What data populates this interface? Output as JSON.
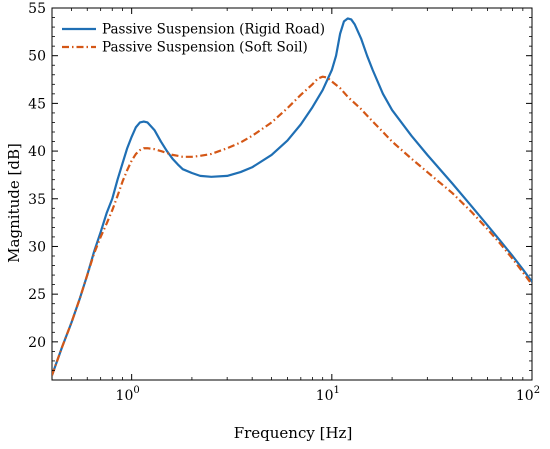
{
  "chart_data": {
    "type": "line",
    "title": "",
    "xlabel": "Frequency [Hz]",
    "ylabel": "Magnitude [dB]",
    "x_scale": "log",
    "xlim": [
      0.4,
      100
    ],
    "ylim": [
      16,
      55
    ],
    "x_ticks": [
      1,
      10,
      100
    ],
    "x_tick_labels": [
      "10^0",
      "10^1",
      "10^2"
    ],
    "y_ticks": [
      20,
      25,
      30,
      35,
      40,
      45,
      50,
      55
    ],
    "grid": false,
    "legend_position": "top-left",
    "series": [
      {
        "name": "Passive Suspension (Rigid Road)",
        "color": "#1f6fb4",
        "style": "solid",
        "points": [
          [
            0.4,
            16.5
          ],
          [
            0.45,
            19.5
          ],
          [
            0.5,
            22.0
          ],
          [
            0.55,
            24.5
          ],
          [
            0.6,
            27.0
          ],
          [
            0.65,
            29.5
          ],
          [
            0.7,
            31.5
          ],
          [
            0.75,
            33.5
          ],
          [
            0.8,
            35.0
          ],
          [
            0.85,
            37.0
          ],
          [
            0.9,
            38.7
          ],
          [
            0.95,
            40.3
          ],
          [
            1.0,
            41.5
          ],
          [
            1.05,
            42.5
          ],
          [
            1.1,
            43.0
          ],
          [
            1.15,
            43.1
          ],
          [
            1.2,
            43.0
          ],
          [
            1.3,
            42.2
          ],
          [
            1.4,
            41.0
          ],
          [
            1.5,
            40.0
          ],
          [
            1.6,
            39.2
          ],
          [
            1.7,
            38.6
          ],
          [
            1.8,
            38.1
          ],
          [
            2.0,
            37.7
          ],
          [
            2.2,
            37.4
          ],
          [
            2.5,
            37.3
          ],
          [
            3.0,
            37.4
          ],
          [
            3.5,
            37.8
          ],
          [
            4.0,
            38.3
          ],
          [
            5.0,
            39.6
          ],
          [
            6.0,
            41.1
          ],
          [
            7.0,
            42.8
          ],
          [
            8.0,
            44.6
          ],
          [
            9.0,
            46.4
          ],
          [
            10.0,
            48.5
          ],
          [
            10.5,
            50.0
          ],
          [
            11.0,
            52.3
          ],
          [
            11.5,
            53.6
          ],
          [
            12.0,
            53.9
          ],
          [
            12.5,
            53.8
          ],
          [
            13.0,
            53.3
          ],
          [
            14.0,
            51.8
          ],
          [
            15.0,
            50.0
          ],
          [
            16.0,
            48.5
          ],
          [
            18.0,
            46.0
          ],
          [
            20.0,
            44.3
          ],
          [
            25.0,
            41.6
          ],
          [
            30.0,
            39.6
          ],
          [
            40.0,
            36.6
          ],
          [
            50.0,
            34.2
          ],
          [
            60.0,
            32.2
          ],
          [
            70.0,
            30.5
          ],
          [
            80.0,
            29.0
          ],
          [
            90.0,
            27.6
          ],
          [
            100.0,
            26.3
          ]
        ]
      },
      {
        "name": "Passive Suspension (Soft Soil)",
        "color": "#d45716",
        "style": "dashdot",
        "points": [
          [
            0.4,
            16.5
          ],
          [
            0.45,
            19.5
          ],
          [
            0.5,
            22.0
          ],
          [
            0.55,
            24.5
          ],
          [
            0.6,
            27.0
          ],
          [
            0.65,
            29.3
          ],
          [
            0.7,
            31.0
          ],
          [
            0.75,
            32.4
          ],
          [
            0.8,
            33.8
          ],
          [
            0.85,
            35.3
          ],
          [
            0.9,
            36.8
          ],
          [
            0.95,
            38.0
          ],
          [
            1.0,
            39.0
          ],
          [
            1.05,
            39.7
          ],
          [
            1.1,
            40.1
          ],
          [
            1.15,
            40.3
          ],
          [
            1.2,
            40.3
          ],
          [
            1.3,
            40.2
          ],
          [
            1.4,
            40.0
          ],
          [
            1.5,
            39.8
          ],
          [
            1.6,
            39.6
          ],
          [
            1.7,
            39.5
          ],
          [
            1.8,
            39.4
          ],
          [
            2.0,
            39.4
          ],
          [
            2.2,
            39.5
          ],
          [
            2.5,
            39.7
          ],
          [
            3.0,
            40.3
          ],
          [
            3.5,
            40.9
          ],
          [
            4.0,
            41.6
          ],
          [
            5.0,
            43.0
          ],
          [
            6.0,
            44.5
          ],
          [
            7.0,
            45.9
          ],
          [
            8.0,
            47.0
          ],
          [
            8.5,
            47.6
          ],
          [
            9.0,
            47.8
          ],
          [
            9.5,
            47.7
          ],
          [
            10.0,
            47.3
          ],
          [
            11.0,
            46.6
          ],
          [
            12.0,
            45.7
          ],
          [
            14.0,
            44.4
          ],
          [
            16.0,
            43.1
          ],
          [
            18.0,
            42.0
          ],
          [
            20.0,
            41.0
          ],
          [
            25.0,
            39.2
          ],
          [
            30.0,
            37.8
          ],
          [
            40.0,
            35.6
          ],
          [
            50.0,
            33.6
          ],
          [
            60.0,
            31.8
          ],
          [
            70.0,
            30.2
          ],
          [
            80.0,
            28.7
          ],
          [
            90.0,
            27.3
          ],
          [
            100.0,
            26.0
          ]
        ]
      }
    ]
  }
}
